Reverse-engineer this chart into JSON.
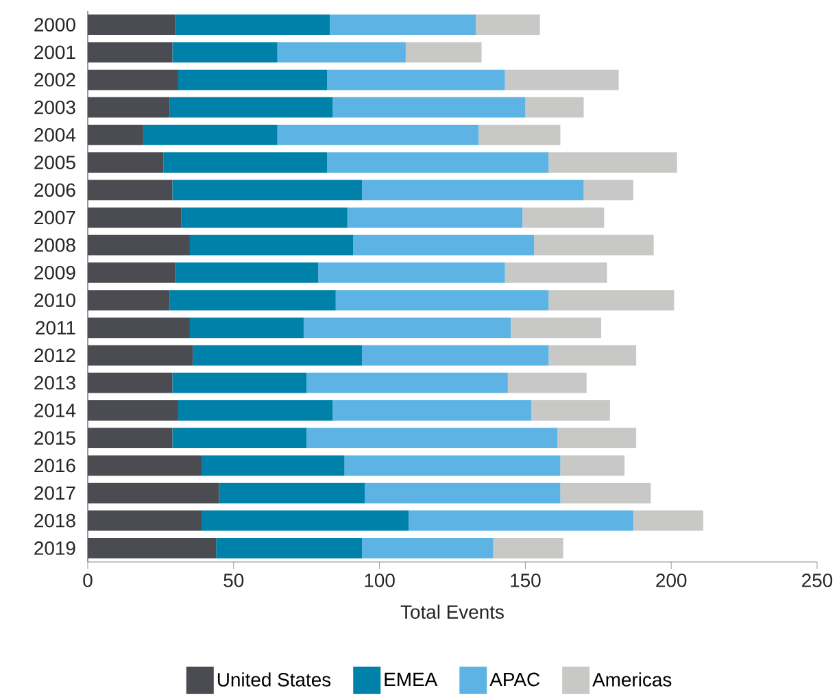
{
  "chart_data": {
    "type": "bar",
    "orientation": "horizontal",
    "stacked": true,
    "xlabel": "Total Events",
    "categories": [
      "2000",
      "2001",
      "2002",
      "2003",
      "2004",
      "2005",
      "2006",
      "2007",
      "2008",
      "2009",
      "2010",
      "2011",
      "2012",
      "2013",
      "2014",
      "2015",
      "2016",
      "2017",
      "2018",
      "2019"
    ],
    "xlim": [
      0,
      250
    ],
    "xticks": [
      0,
      50,
      100,
      150,
      200,
      250
    ],
    "legend": "bottom",
    "series": [
      {
        "name": "United States",
        "color": "#4b4b52",
        "values": [
          30,
          29,
          31,
          28,
          19,
          26,
          29,
          32,
          35,
          30,
          28,
          35,
          36,
          29,
          31,
          29,
          39,
          45,
          39,
          44
        ]
      },
      {
        "name": "EMEA",
        "color": "#0081a9",
        "values": [
          53,
          36,
          51,
          56,
          46,
          56,
          65,
          57,
          56,
          49,
          57,
          39,
          58,
          46,
          53,
          46,
          49,
          50,
          71,
          50
        ]
      },
      {
        "name": "APAC",
        "color": "#5db4e4",
        "values": [
          50,
          44,
          61,
          66,
          69,
          76,
          76,
          60,
          62,
          64,
          73,
          71,
          64,
          69,
          68,
          86,
          74,
          67,
          77,
          45
        ]
      },
      {
        "name": "Americas",
        "color": "#c8c8c6",
        "values": [
          22,
          26,
          39,
          20,
          28,
          44,
          17,
          28,
          41,
          35,
          43,
          31,
          30,
          27,
          27,
          27,
          22,
          31,
          24,
          24
        ]
      }
    ]
  }
}
